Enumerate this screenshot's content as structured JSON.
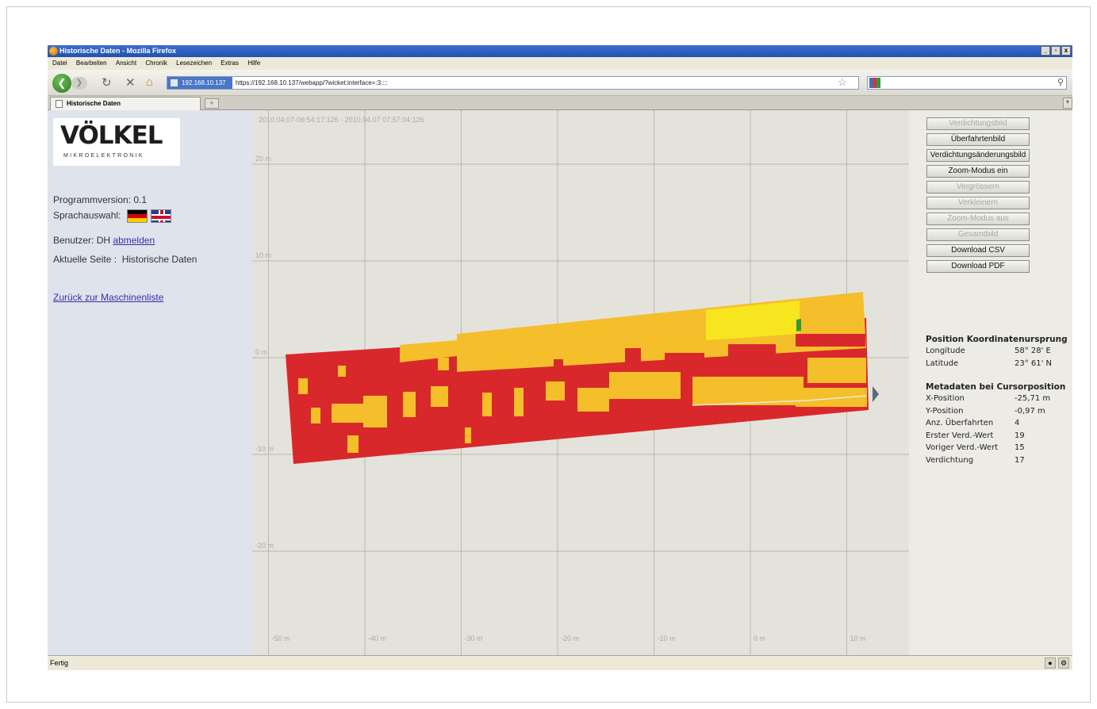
{
  "window": {
    "title": "Historische Daten - Mozilla Firefox",
    "controls": [
      "_",
      "▫",
      "x"
    ]
  },
  "menu": [
    "Datei",
    "Bearbeiten",
    "Ansicht",
    "Chronik",
    "Lesezeichen",
    "Extras",
    "Hilfe"
  ],
  "toolbar": {
    "site": "192.168.10.137",
    "url": "https://192.168.10.137/webapp/?wicket:interface=:3::::"
  },
  "tab": {
    "label": "Historische Daten",
    "new_tab": "+",
    "scroll": "▾"
  },
  "logo": {
    "name": "VÖLKEL",
    "subtitle": "MIKROELEKTRONIK"
  },
  "sidebar": {
    "version": "Programmversion: 0.1",
    "language_label": "Sprachauswahl:",
    "user_label": "Benutzer:",
    "user_name": "DH",
    "logout": "abmelden",
    "page_label": "Aktuelle Seite :",
    "page_name": "Historische Daten",
    "back_link": "Zurück zur Maschinenliste"
  },
  "plot": {
    "time_range": "2010.04.07-06:54:17:126 - 2010.04.07 07:57:04:126",
    "y_ticks": [
      {
        "label": "20 m",
        "value": 20
      },
      {
        "label": "10 m",
        "value": 10
      },
      {
        "label": "0 m",
        "value": 0
      },
      {
        "label": "-10 m",
        "value": -10
      },
      {
        "label": "-20 m",
        "value": -20
      }
    ],
    "x_ticks": [
      {
        "label": "-50 m",
        "value": -50
      },
      {
        "label": "-40 m",
        "value": -40
      },
      {
        "label": "-30 m",
        "value": -30
      },
      {
        "label": "-20 m",
        "value": -20
      },
      {
        "label": "-10 m",
        "value": -10
      },
      {
        "label": "0 m",
        "value": 0
      },
      {
        "label": "10 m",
        "value": 10
      }
    ],
    "colors": {
      "low": "#d9282b",
      "mid": "#f4bf2a",
      "high": "#f7e61f",
      "green": "#2f9b3a",
      "marker": "#5f6a78",
      "grid": "#a9a9a2"
    }
  },
  "buttons": [
    {
      "label": "Verdichtungsbild",
      "enabled": false
    },
    {
      "label": "Überfahrtenbild",
      "enabled": true
    },
    {
      "label": "Verdichtungsänderungsbild",
      "enabled": true
    },
    {
      "label": "Zoom-Modus ein",
      "enabled": true
    },
    {
      "label": "Vergrössern",
      "enabled": false
    },
    {
      "label": "Verkleinern",
      "enabled": false
    },
    {
      "label": "Zoom-Modus aus",
      "enabled": false
    },
    {
      "label": "Gesamtbild",
      "enabled": false
    },
    {
      "label": "Download CSV",
      "enabled": true
    },
    {
      "label": "Download PDF",
      "enabled": true
    }
  ],
  "position": {
    "title": "Position Koordinatenursprung",
    "rows": [
      {
        "label": "Longitude",
        "value": "58° 28' E"
      },
      {
        "label": "Latitude",
        "value": "23° 61' N"
      }
    ]
  },
  "metadata": {
    "title": "Metadaten bei Cursorposition",
    "rows": [
      {
        "label": "X-Position",
        "value": "-25,71 m"
      },
      {
        "label": "Y-Position",
        "value": "-0,97 m"
      },
      {
        "label": "Anz. Überfahrten",
        "value": "4"
      },
      {
        "label": "Erster Verd.-Wert",
        "value": "19"
      },
      {
        "label": "Voriger Verd.-Wert",
        "value": "15"
      },
      {
        "label": "Verdichtung",
        "value": "17"
      }
    ]
  },
  "status": {
    "text": "Fertig"
  }
}
